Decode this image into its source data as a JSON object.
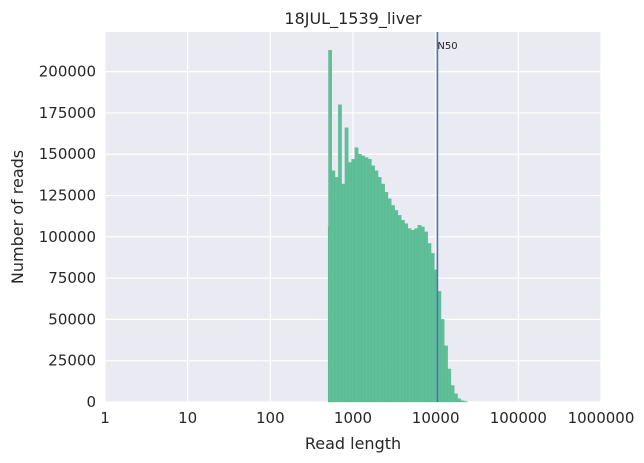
{
  "chart_data": {
    "type": "bar",
    "title": "18JUL_1539_liver",
    "xlabel": "Read length",
    "ylabel": "Number of reads",
    "xscale": "log",
    "xlim": [
      1,
      1000000
    ],
    "ylim": [
      0,
      224000
    ],
    "x_ticks": [
      1,
      10,
      100,
      1000,
      10000,
      100000,
      1000000
    ],
    "x_tick_labels": [
      "1",
      "10",
      "100",
      "1000",
      "10000",
      "100000",
      "1000000"
    ],
    "y_ticks": [
      0,
      25000,
      50000,
      75000,
      100000,
      125000,
      150000,
      175000,
      200000
    ],
    "y_tick_labels": [
      "0",
      "25000",
      "50000",
      "75000",
      "100000",
      "125000",
      "150000",
      "175000",
      "200000"
    ],
    "grid": true,
    "bar_color": "#5fbf98",
    "bin_width_log10": 0.0406,
    "bins": [
      [
        500,
        106000
      ],
      [
        505,
        213000
      ],
      [
        552,
        140000
      ],
      [
        605,
        136000
      ],
      [
        663,
        180000
      ],
      [
        727,
        132000
      ],
      [
        798,
        166000
      ],
      [
        875,
        145000
      ],
      [
        960,
        147000
      ],
      [
        1052,
        154000
      ],
      [
        1154,
        150000
      ],
      [
        1266,
        149000
      ],
      [
        1388,
        148000
      ],
      [
        1523,
        147000
      ],
      [
        1670,
        143000
      ],
      [
        1831,
        140000
      ],
      [
        2008,
        136000
      ],
      [
        2203,
        132000
      ],
      [
        2416,
        127000
      ],
      [
        2649,
        123000
      ],
      [
        2905,
        119000
      ],
      [
        3186,
        116000
      ],
      [
        3494,
        113000
      ],
      [
        3832,
        110000
      ],
      [
        4202,
        108000
      ],
      [
        4608,
        105000
      ],
      [
        5054,
        104000
      ],
      [
        5543,
        105000
      ],
      [
        6078,
        107000
      ],
      [
        6666,
        106000
      ],
      [
        7311,
        103000
      ],
      [
        8017,
        96000
      ],
      [
        8793,
        90000
      ],
      [
        9643,
        80000
      ],
      [
        10575,
        67000
      ],
      [
        11597,
        50000
      ],
      [
        12718,
        34000
      ],
      [
        13948,
        20000
      ],
      [
        15296,
        10000
      ],
      [
        16775,
        5000
      ],
      [
        18397,
        2000
      ],
      [
        20175,
        800
      ],
      [
        22126,
        300
      ]
    ],
    "annotations": [
      {
        "type": "vline",
        "x": 10500,
        "label": "N50",
        "color": "#4c72b0"
      }
    ]
  }
}
